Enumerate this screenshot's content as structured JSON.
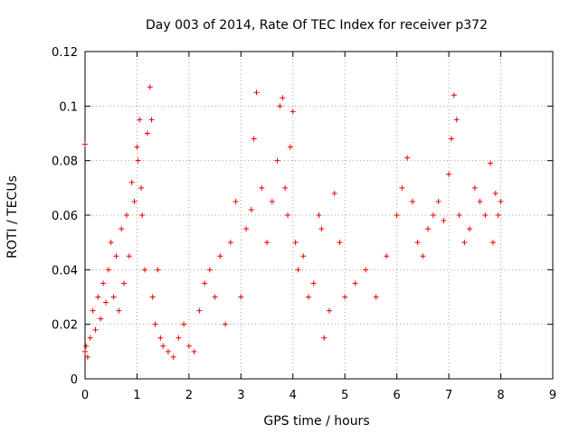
{
  "chart_data": {
    "type": "scatter",
    "title": "Day 003 of 2014, Rate Of TEC Index for receiver p372",
    "xlabel": "GPS time / hours",
    "ylabel": "ROTI / TECUs",
    "xlim": [
      0,
      9
    ],
    "ylim": [
      0,
      0.12
    ],
    "xticks": [
      "0",
      "1",
      "2",
      "3",
      "4",
      "5",
      "6",
      "7",
      "8",
      "9"
    ],
    "yticks": [
      "0",
      "0.02",
      "0.04",
      "0.06",
      "0.08",
      "0.1",
      "0.12"
    ],
    "grid": true,
    "marker": "plus",
    "series": [
      {
        "name": "ROTI",
        "color": "#ee0000",
        "x": [
          0.0,
          0.0,
          0.02,
          0.05,
          0.1,
          0.15,
          0.2,
          0.25,
          0.3,
          0.35,
          0.4,
          0.45,
          0.5,
          0.55,
          0.6,
          0.65,
          0.7,
          0.75,
          0.8,
          0.85,
          0.9,
          0.95,
          1.0,
          1.02,
          1.05,
          1.08,
          1.1,
          1.15,
          1.2,
          1.25,
          1.28,
          1.3,
          1.35,
          1.4,
          1.45,
          1.5,
          1.6,
          1.7,
          1.8,
          1.9,
          2.0,
          2.1,
          2.2,
          2.3,
          2.4,
          2.5,
          2.6,
          2.7,
          2.8,
          2.9,
          3.0,
          3.1,
          3.2,
          3.25,
          3.3,
          3.4,
          3.5,
          3.6,
          3.7,
          3.75,
          3.8,
          3.85,
          3.9,
          3.95,
          4.0,
          4.05,
          4.1,
          4.2,
          4.3,
          4.4,
          4.5,
          4.55,
          4.6,
          4.7,
          4.8,
          4.9,
          5.0,
          5.2,
          5.4,
          5.6,
          5.8,
          6.0,
          6.1,
          6.2,
          6.3,
          6.4,
          6.5,
          6.6,
          6.7,
          6.8,
          6.9,
          7.0,
          7.05,
          7.1,
          7.15,
          7.2,
          7.3,
          7.4,
          7.5,
          7.6,
          7.7,
          7.8,
          7.85,
          7.9,
          7.95,
          8.0
        ],
        "y": [
          0.086,
          0.01,
          0.012,
          0.008,
          0.015,
          0.025,
          0.018,
          0.03,
          0.022,
          0.035,
          0.028,
          0.04,
          0.05,
          0.03,
          0.045,
          0.025,
          0.055,
          0.035,
          0.06,
          0.045,
          0.072,
          0.065,
          0.085,
          0.08,
          0.095,
          0.07,
          0.06,
          0.04,
          0.09,
          0.107,
          0.095,
          0.03,
          0.02,
          0.04,
          0.015,
          0.012,
          0.01,
          0.008,
          0.015,
          0.02,
          0.012,
          0.01,
          0.025,
          0.035,
          0.04,
          0.03,
          0.045,
          0.02,
          0.05,
          0.065,
          0.03,
          0.055,
          0.062,
          0.088,
          0.105,
          0.07,
          0.05,
          0.065,
          0.08,
          0.1,
          0.103,
          0.07,
          0.06,
          0.085,
          0.098,
          0.05,
          0.04,
          0.045,
          0.03,
          0.035,
          0.06,
          0.055,
          0.015,
          0.025,
          0.068,
          0.05,
          0.03,
          0.035,
          0.04,
          0.03,
          0.045,
          0.06,
          0.07,
          0.081,
          0.065,
          0.05,
          0.045,
          0.055,
          0.06,
          0.065,
          0.058,
          0.075,
          0.088,
          0.104,
          0.095,
          0.06,
          0.05,
          0.055,
          0.07,
          0.065,
          0.06,
          0.079,
          0.05,
          0.068,
          0.06,
          0.065
        ]
      }
    ]
  }
}
